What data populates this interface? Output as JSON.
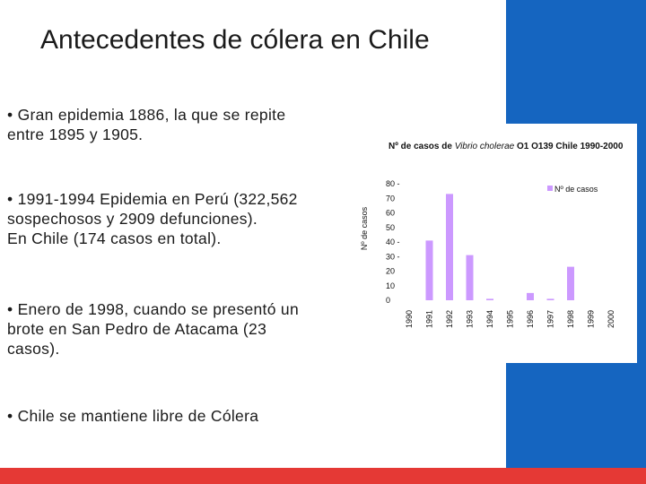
{
  "slide": {
    "title": "Antecedentes de cólera en Chile",
    "bullets": [
      {
        "lines": [
          "• Gran epidemia 1886, la que se repite",
          "entre 1895 y 1905."
        ]
      },
      {
        "lines": [
          "• 1991-1994 Epidemia en Perú (322,562",
          "sospechosos y 2909 defunciones).",
          "En Chile (174 casos en total)."
        ]
      },
      {
        "lines": [
          "• Enero de 1998, cuando se presentó un",
          "brote en San Pedro de Atacama (23",
          "casos)."
        ]
      },
      {
        "lines": [
          "• Chile se mantiene libre de Cólera"
        ]
      }
    ],
    "colors": {
      "right_band": "#1565c0",
      "bottom_strip": "#e53935",
      "bar": "#cc99ff"
    }
  },
  "chart_data": {
    "type": "bar",
    "title_prefix": "Nº de casos de ",
    "title_italic": "Vibrio cholerae",
    "title_suffix": " O1 O139 Chile 1990-2000",
    "ylabel": "Nº de casos",
    "xlabel": "",
    "categories": [
      "1990",
      "1991",
      "1992",
      "1993",
      "1994",
      "1995",
      "1996",
      "1997",
      "1998",
      "1999",
      "2000"
    ],
    "series": [
      {
        "name": "Nº de casos",
        "values": [
          0,
          41,
          73,
          31,
          1,
          0,
          5,
          1,
          23,
          0,
          0
        ]
      }
    ],
    "ylim": [
      0,
      80
    ],
    "yticks": [
      "0",
      "10",
      "20",
      "30 -",
      "40 -",
      "50",
      "60",
      "70",
      "80 -"
    ],
    "legend_position": "top-right",
    "grid": false,
    "color": "#cc99ff"
  }
}
